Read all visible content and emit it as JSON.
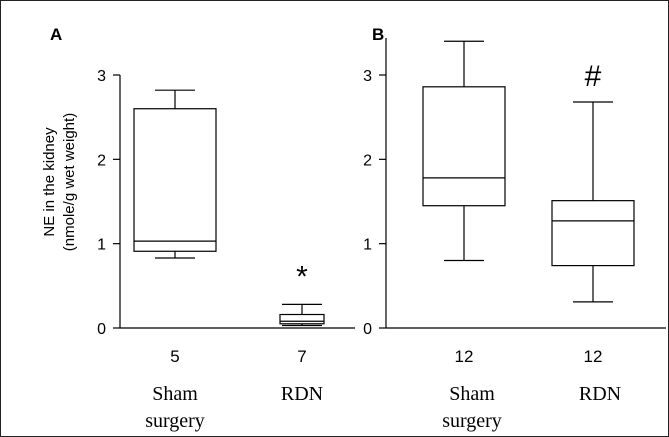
{
  "y_axis_label": [
    "NE in the kidney",
    "(nmole/g  wet weight)"
  ],
  "chart_data": [
    {
      "panel": "A",
      "type": "box",
      "ylim": [
        0,
        3
      ],
      "yticks": [
        "0",
        "1",
        "2",
        "3"
      ],
      "significance": "*",
      "significance_group": 1,
      "groups": [
        {
          "n": "5",
          "label": [
            "Sham",
            "surgery"
          ],
          "whisker_low": 0.83,
          "q1": 0.91,
          "median": 1.03,
          "q3": 2.6,
          "whisker_high": 2.82
        },
        {
          "n": "7",
          "label": [
            "RDN"
          ],
          "whisker_low": 0.03,
          "q1": 0.05,
          "median": 0.08,
          "q3": 0.16,
          "whisker_high": 0.28
        }
      ]
    },
    {
      "panel": "B",
      "type": "box",
      "ylim": [
        0,
        3
      ],
      "yticks": [
        "0",
        "1",
        "2",
        "3"
      ],
      "significance": "#",
      "significance_group": 1,
      "groups": [
        {
          "n": "12",
          "label": [
            "Sham",
            "surgery"
          ],
          "whisker_low": 0.8,
          "q1": 1.45,
          "median": 1.78,
          "q3": 2.86,
          "whisker_high": 3.4
        },
        {
          "n": "12",
          "label": [
            "RDN"
          ],
          "whisker_low": 0.31,
          "q1": 0.74,
          "median": 1.27,
          "q3": 1.51,
          "whisker_high": 2.68
        }
      ]
    }
  ]
}
